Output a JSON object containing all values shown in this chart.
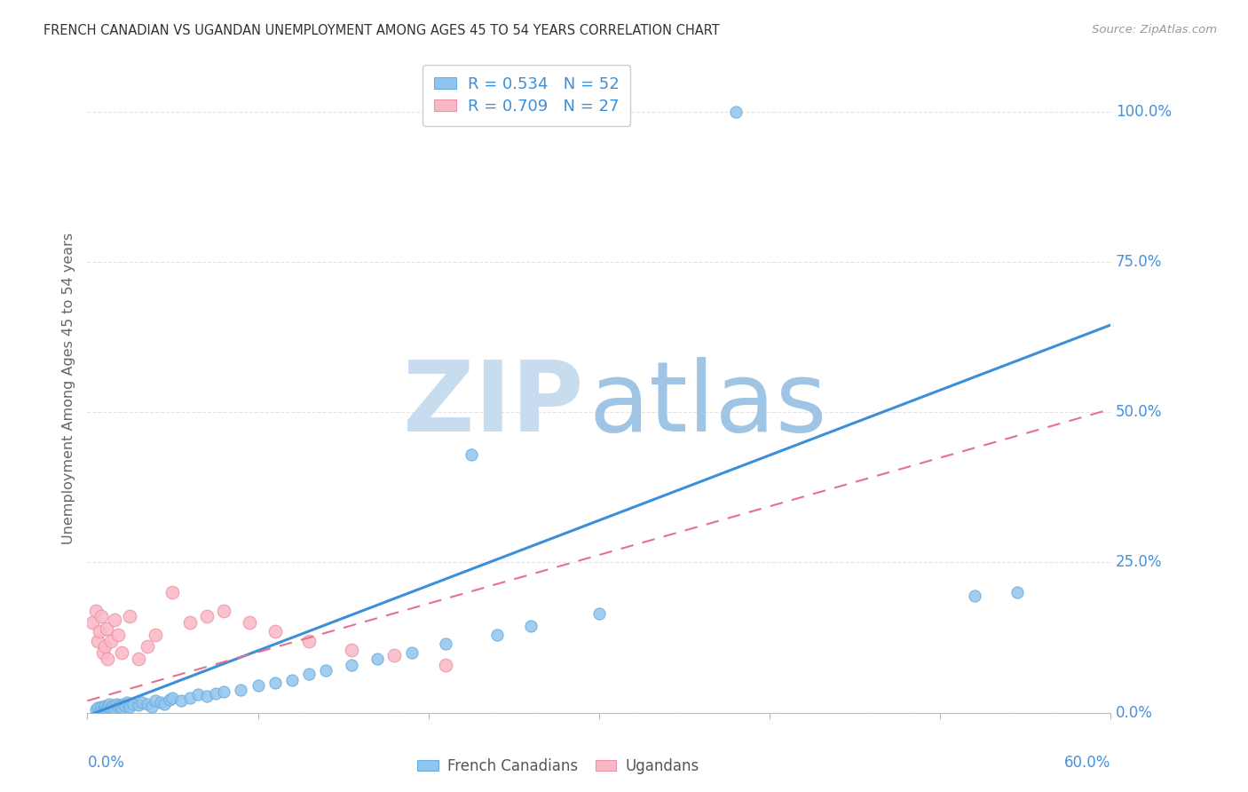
{
  "title": "FRENCH CANADIAN VS UGANDAN UNEMPLOYMENT AMONG AGES 45 TO 54 YEARS CORRELATION CHART",
  "source": "Source: ZipAtlas.com",
  "ylabel": "Unemployment Among Ages 45 to 54 years",
  "blue_label": "French Canadians",
  "pink_label": "Ugandans",
  "blue_R": "0.534",
  "blue_N": "52",
  "pink_R": "0.709",
  "pink_N": "27",
  "blue_color": "#92C5ED",
  "pink_color": "#F9B8C5",
  "blue_edge_color": "#6AAEE0",
  "pink_edge_color": "#F090A8",
  "blue_line_color": "#3A8FD8",
  "pink_line_color": "#E8708A",
  "watermark_zip_color": "#C8DCF0",
  "watermark_atlas_color": "#A0C4E4",
  "title_color": "#333333",
  "source_color": "#999999",
  "ylabel_color": "#666666",
  "ytick_color": "#4A90D8",
  "xtick_color": "#4A90D8",
  "grid_color": "#DDDDDD",
  "xlim": [
    0.0,
    0.6
  ],
  "ylim": [
    0.0,
    1.08
  ],
  "yticks": [
    0.0,
    0.25,
    0.5,
    0.75,
    1.0
  ],
  "ytick_labels": [
    "0.0%",
    "25.0%",
    "50.0%",
    "75.0%",
    "100.0%"
  ],
  "xtick_positions": [
    0.0,
    0.1,
    0.2,
    0.3,
    0.4,
    0.5,
    0.6
  ],
  "blue_line": {
    "x0": 0.0,
    "y0": -0.005,
    "x1": 0.6,
    "y1": 0.645
  },
  "pink_line": {
    "x0": 0.0,
    "y0": 0.02,
    "x1": 0.6,
    "y1": 0.505
  },
  "blue_points": {
    "x": [
      0.005,
      0.006,
      0.007,
      0.008,
      0.009,
      0.01,
      0.01,
      0.011,
      0.012,
      0.013,
      0.014,
      0.015,
      0.016,
      0.017,
      0.018,
      0.019,
      0.02,
      0.021,
      0.022,
      0.023,
      0.025,
      0.027,
      0.03,
      0.032,
      0.035,
      0.038,
      0.04,
      0.043,
      0.045,
      0.048,
      0.05,
      0.055,
      0.06,
      0.065,
      0.07,
      0.075,
      0.08,
      0.09,
      0.1,
      0.11,
      0.12,
      0.13,
      0.14,
      0.155,
      0.17,
      0.19,
      0.21,
      0.24,
      0.26,
      0.3,
      0.52,
      0.545
    ],
    "y": [
      0.005,
      0.008,
      0.003,
      0.01,
      0.005,
      0.008,
      0.012,
      0.006,
      0.01,
      0.015,
      0.008,
      0.012,
      0.007,
      0.015,
      0.01,
      0.013,
      0.008,
      0.015,
      0.012,
      0.018,
      0.01,
      0.015,
      0.013,
      0.018,
      0.015,
      0.01,
      0.02,
      0.018,
      0.015,
      0.022,
      0.025,
      0.02,
      0.025,
      0.03,
      0.028,
      0.032,
      0.035,
      0.038,
      0.045,
      0.05,
      0.055,
      0.065,
      0.07,
      0.08,
      0.09,
      0.1,
      0.115,
      0.13,
      0.145,
      0.165,
      0.195,
      0.2
    ]
  },
  "blue_outliers": {
    "x": [
      0.2,
      0.38,
      0.225
    ],
    "y": [
      1.0,
      1.0,
      0.43
    ]
  },
  "pink_points": {
    "x": [
      0.003,
      0.005,
      0.006,
      0.007,
      0.008,
      0.009,
      0.01,
      0.011,
      0.012,
      0.014,
      0.016,
      0.018,
      0.02,
      0.025,
      0.03,
      0.035,
      0.04,
      0.05,
      0.06,
      0.07,
      0.08,
      0.095,
      0.11,
      0.13,
      0.155,
      0.18,
      0.21
    ],
    "y": [
      0.15,
      0.17,
      0.12,
      0.135,
      0.16,
      0.1,
      0.11,
      0.14,
      0.09,
      0.12,
      0.155,
      0.13,
      0.1,
      0.16,
      0.09,
      0.11,
      0.13,
      0.2,
      0.15,
      0.16,
      0.17,
      0.15,
      0.135,
      0.12,
      0.105,
      0.095,
      0.08
    ]
  }
}
